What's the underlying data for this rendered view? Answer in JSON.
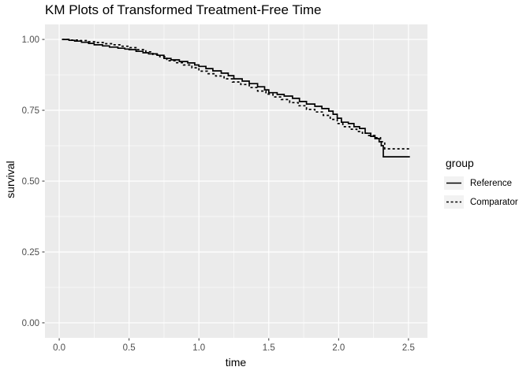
{
  "colors": {
    "background": "#FFFFFF",
    "panel_bg": "#EBEBEB",
    "grid": "#FFFFFF",
    "tick_mark": "#333333",
    "tick_label": "#4D4D4D",
    "text": "#000000",
    "legend_key_bg": "#F2F2F2",
    "line": "#000000"
  },
  "chart_data": {
    "type": "line",
    "subtype": "kaplan-meier-step",
    "title": "KM Plots of Transformed Treatment-Free Time",
    "xlabel": "time",
    "ylabel": "survival",
    "legend_title": "group",
    "legend_position": "right",
    "grid": true,
    "xlim": [
      -0.102,
      2.636
    ],
    "ylim": [
      -0.053,
      1.053
    ],
    "x_ticks": [
      0.0,
      0.5,
      1.0,
      1.5,
      2.0,
      2.5
    ],
    "x_tick_labels": [
      "0.0",
      "0.5",
      "1.0",
      "1.5",
      "2.0",
      "2.5"
    ],
    "y_ticks": [
      0.0,
      0.25,
      0.5,
      0.75,
      1.0
    ],
    "y_tick_labels": [
      "0.00",
      "0.25",
      "0.50",
      "0.75",
      "1.00"
    ],
    "x_minor": [
      0.25,
      0.75,
      1.25,
      1.75,
      2.25
    ],
    "y_minor": [
      0.125,
      0.375,
      0.625,
      0.875
    ],
    "series": [
      {
        "name": "Reference",
        "linetype": "solid",
        "color": "#000000",
        "x": [
          0.02,
          0.07,
          0.11,
          0.16,
          0.21,
          0.25,
          0.31,
          0.36,
          0.42,
          0.47,
          0.5,
          0.55,
          0.6,
          0.64,
          0.7,
          0.75,
          0.8,
          0.86,
          0.92,
          0.97,
          1.0,
          1.05,
          1.1,
          1.16,
          1.21,
          1.25,
          1.31,
          1.36,
          1.42,
          1.47,
          1.5,
          1.56,
          1.61,
          1.67,
          1.72,
          1.77,
          1.83,
          1.88,
          1.93,
          1.96,
          1.99,
          2.02,
          2.07,
          2.11,
          2.15,
          2.19,
          2.23,
          2.26,
          2.29,
          2.305,
          2.32,
          2.51
        ],
        "y": [
          1.0,
          0.997,
          0.994,
          0.99,
          0.986,
          0.981,
          0.977,
          0.973,
          0.969,
          0.966,
          0.964,
          0.958,
          0.953,
          0.949,
          0.944,
          0.933,
          0.928,
          0.922,
          0.917,
          0.91,
          0.905,
          0.897,
          0.889,
          0.881,
          0.872,
          0.861,
          0.853,
          0.844,
          0.833,
          0.822,
          0.812,
          0.806,
          0.8,
          0.792,
          0.781,
          0.772,
          0.764,
          0.756,
          0.747,
          0.736,
          0.722,
          0.708,
          0.703,
          0.692,
          0.686,
          0.669,
          0.658,
          0.65,
          0.639,
          0.625,
          0.586,
          0.586
        ]
      },
      {
        "name": "Comparator",
        "linetype": "dashed",
        "color": "#000000",
        "x": [
          0.02,
          0.08,
          0.14,
          0.2,
          0.26,
          0.32,
          0.38,
          0.44,
          0.5,
          0.56,
          0.62,
          0.67,
          0.72,
          0.77,
          0.83,
          0.89,
          0.95,
          1.0,
          1.06,
          1.12,
          1.18,
          1.24,
          1.3,
          1.36,
          1.42,
          1.48,
          1.53,
          1.59,
          1.65,
          1.71,
          1.77,
          1.83,
          1.89,
          1.94,
          1.99,
          2.03,
          2.08,
          2.13,
          2.17,
          2.21,
          2.26,
          2.3,
          2.33,
          2.52
        ],
        "y": [
          1.0,
          0.998,
          0.996,
          0.992,
          0.989,
          0.985,
          0.981,
          0.976,
          0.971,
          0.964,
          0.956,
          0.947,
          0.939,
          0.925,
          0.918,
          0.91,
          0.9,
          0.888,
          0.879,
          0.871,
          0.861,
          0.85,
          0.841,
          0.83,
          0.818,
          0.807,
          0.797,
          0.788,
          0.777,
          0.766,
          0.753,
          0.744,
          0.732,
          0.718,
          0.703,
          0.692,
          0.683,
          0.675,
          0.669,
          0.661,
          0.653,
          0.639,
          0.614,
          0.614
        ]
      }
    ]
  }
}
